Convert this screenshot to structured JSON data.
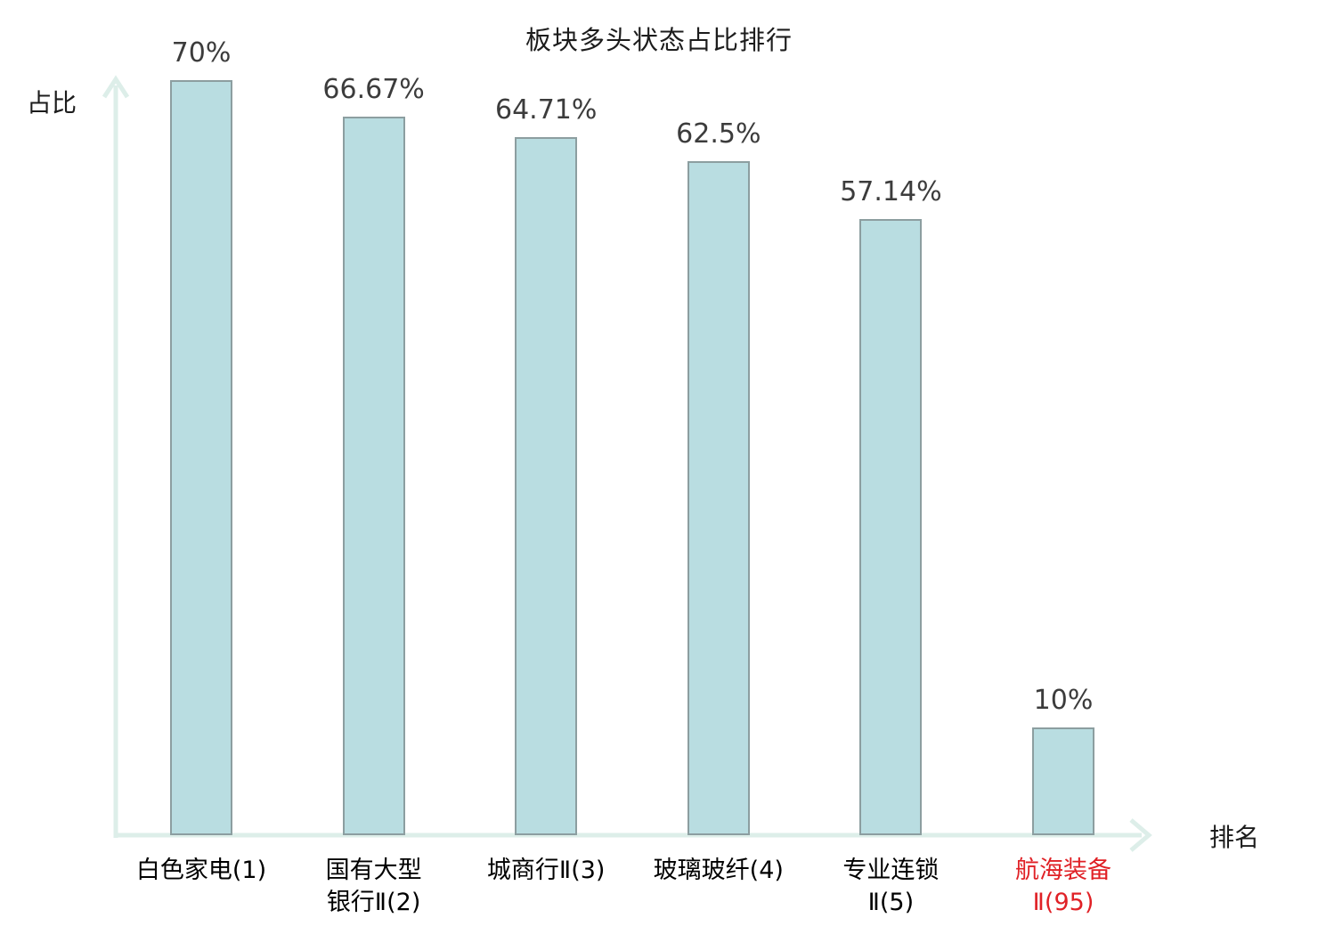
{
  "title": "板块多头状态占比排行",
  "y_axis_label": "占比",
  "x_axis_label": "排名",
  "colors": {
    "bar_fill": "#b9dde1",
    "bar_border": "#8c9ea0",
    "axis": "#ddeee9",
    "value_label": "#3c3c3c",
    "category_label": "#000000",
    "highlight_label": "#e02126",
    "background": "#ffffff"
  },
  "chart_data": {
    "type": "bar",
    "title": "板块多头状态占比排行",
    "xlabel": "排名",
    "ylabel": "占比",
    "ylim": [
      0,
      70
    ],
    "grid": false,
    "legend": null,
    "categories": [
      "白色家电(1)",
      "国有大型银行Ⅱ(2)",
      "城商行Ⅱ(3)",
      "玻璃玻纤(4)",
      "专业连锁Ⅱ(5)",
      "航海装备Ⅱ(95)"
    ],
    "category_lines": [
      [
        "白色家电(1)"
      ],
      [
        "国有大型",
        "银行Ⅱ(2)"
      ],
      [
        "城商行Ⅱ(3)"
      ],
      [
        "玻璃玻纤(4)"
      ],
      [
        "专业连锁",
        "Ⅱ(5)"
      ],
      [
        "航海装备",
        "Ⅱ(95)"
      ]
    ],
    "values": [
      70,
      66.67,
      64.71,
      62.5,
      57.14,
      10
    ],
    "value_labels": [
      "70%",
      "66.67%",
      "64.71%",
      "62.5%",
      "57.14%",
      "10%"
    ],
    "highlighted_index": 5
  }
}
